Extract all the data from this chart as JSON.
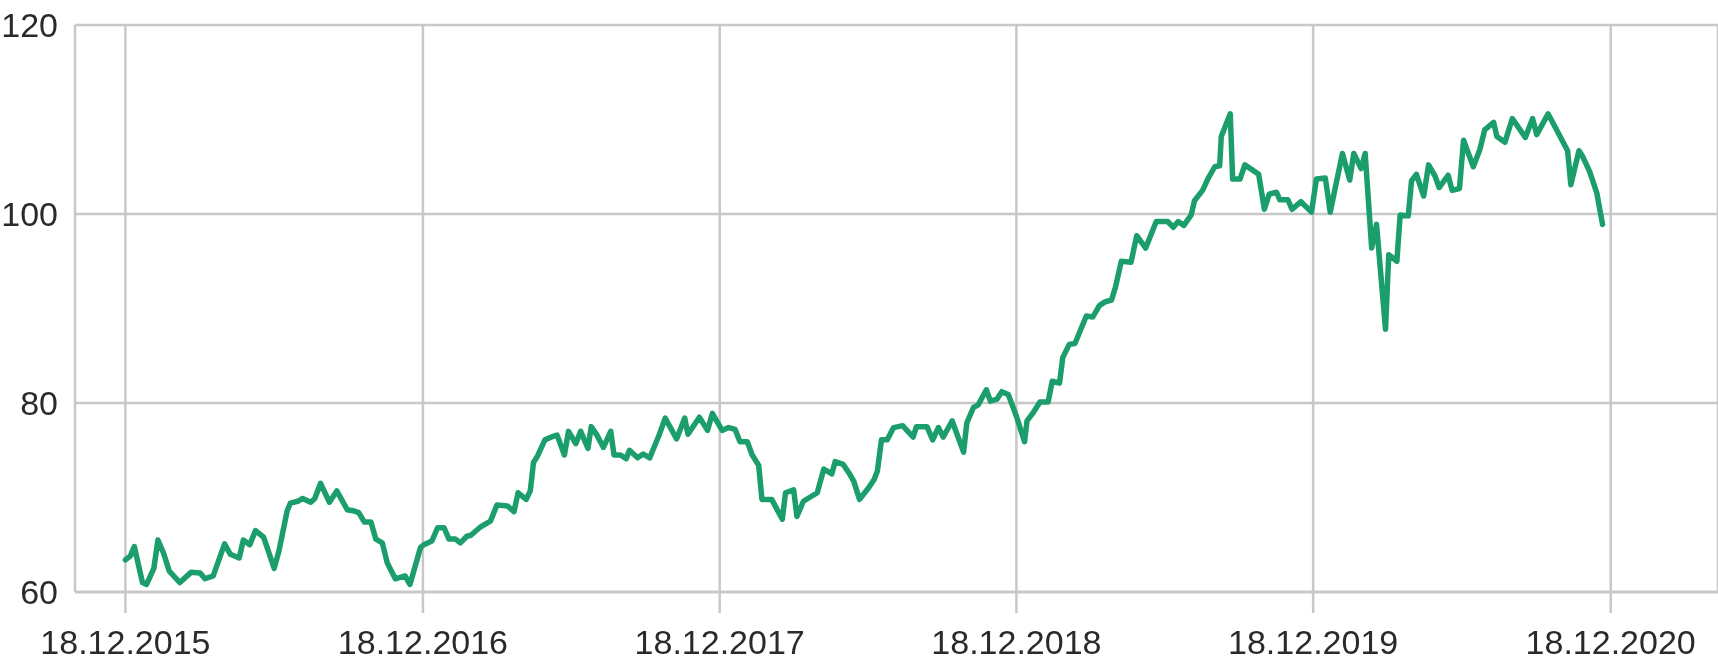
{
  "chart_data": {
    "type": "line",
    "x": [
      "2015-12-18",
      "2015-12-24",
      "2015-12-29",
      "2016-01-08",
      "2016-01-13",
      "2016-01-22",
      "2016-01-27",
      "2016-02-03",
      "2016-02-10",
      "2016-02-23",
      "2016-03-08",
      "2016-03-19",
      "2016-03-25",
      "2016-04-04",
      "2016-04-18",
      "2016-04-25",
      "2016-05-06",
      "2016-05-11",
      "2016-05-19",
      "2016-05-26",
      "2016-06-05",
      "2016-06-18",
      "2016-06-24",
      "2016-07-04",
      "2016-07-08",
      "2016-07-17",
      "2016-07-23",
      "2016-08-02",
      "2016-08-07",
      "2016-08-14",
      "2016-08-25",
      "2016-09-03",
      "2016-09-16",
      "2016-09-23",
      "2016-09-30",
      "2016-10-07",
      "2016-10-15",
      "2016-10-21",
      "2016-10-29",
      "2016-11-04",
      "2016-11-14",
      "2016-11-26",
      "2016-12-02",
      "2016-12-15",
      "2016-12-19",
      "2016-12-29",
      "2017-01-05",
      "2017-01-13",
      "2017-01-19",
      "2017-01-27",
      "2017-02-02",
      "2017-02-10",
      "2017-02-15",
      "2017-02-27",
      "2017-03-11",
      "2017-03-19",
      "2017-04-01",
      "2017-04-09",
      "2017-04-14",
      "2017-04-24",
      "2017-04-29",
      "2017-05-03",
      "2017-05-08",
      "2017-05-17",
      "2017-05-28",
      "2017-06-01",
      "2017-06-10",
      "2017-06-15",
      "2017-06-24",
      "2017-06-30",
      "2017-07-09",
      "2017-07-13",
      "2017-07-20",
      "2017-07-28",
      "2017-08-06",
      "2017-08-10",
      "2017-08-18",
      "2017-08-25",
      "2017-08-29",
      "2017-09-08",
      "2017-09-15",
      "2017-09-23",
      "2017-10-04",
      "2017-10-12",
      "2017-10-26",
      "2017-11-05",
      "2017-11-09",
      "2017-11-23",
      "2017-12-03",
      "2017-12-09",
      "2017-12-21",
      "2017-12-29",
      "2018-01-06",
      "2018-01-12",
      "2018-01-21",
      "2018-01-27",
      "2018-02-04",
      "2018-02-08",
      "2018-02-20",
      "2018-03-05",
      "2018-03-09",
      "2018-03-19",
      "2018-03-23",
      "2018-03-31",
      "2018-04-17",
      "2018-04-25",
      "2018-05-05",
      "2018-05-09",
      "2018-05-19",
      "2018-05-26",
      "2018-06-01",
      "2018-06-08",
      "2018-06-19",
      "2018-06-26",
      "2018-06-30",
      "2018-07-05",
      "2018-07-12",
      "2018-07-20",
      "2018-07-31",
      "2018-08-13",
      "2018-08-17",
      "2018-08-30",
      "2018-09-06",
      "2018-09-13",
      "2018-09-19",
      "2018-09-30",
      "2018-10-14",
      "2018-10-18",
      "2018-10-26",
      "2018-11-01",
      "2018-11-11",
      "2018-11-16",
      "2018-11-24",
      "2018-11-30",
      "2018-12-08",
      "2018-12-18",
      "2018-12-28",
      "2018-12-31",
      "2019-01-07",
      "2019-01-16",
      "2019-01-26",
      "2019-01-31",
      "2019-02-09",
      "2019-02-13",
      "2019-02-21",
      "2019-02-28",
      "2019-03-14",
      "2019-03-22",
      "2019-03-30",
      "2019-04-06",
      "2019-04-14",
      "2019-04-19",
      "2019-04-26",
      "2019-05-08",
      "2019-05-15",
      "2019-05-26",
      "2019-06-08",
      "2019-06-22",
      "2019-06-29",
      "2019-07-05",
      "2019-07-12",
      "2019-07-21",
      "2019-07-25",
      "2019-08-04",
      "2019-08-11",
      "2019-08-19",
      "2019-08-25",
      "2019-08-27",
      "2019-09-07",
      "2019-09-10",
      "2019-09-19",
      "2019-09-25",
      "2019-10-12",
      "2019-10-19",
      "2019-10-25",
      "2019-11-03",
      "2019-11-07",
      "2019-11-17",
      "2019-11-22",
      "2019-12-03",
      "2019-12-16",
      "2019-12-22",
      "2020-01-02",
      "2020-01-08",
      "2020-01-23",
      "2020-02-01",
      "2020-02-06",
      "2020-02-15",
      "2020-02-20",
      "2020-02-28",
      "2020-03-05",
      "2020-03-16",
      "2020-03-20",
      "2020-03-30",
      "2020-04-03",
      "2020-04-13",
      "2020-04-17",
      "2020-04-23",
      "2020-05-02",
      "2020-05-08",
      "2020-05-16",
      "2020-05-21",
      "2020-06-01",
      "2020-06-06",
      "2020-06-15",
      "2020-06-20",
      "2020-07-02",
      "2020-07-10",
      "2020-07-16",
      "2020-07-27",
      "2020-07-31",
      "2020-08-10",
      "2020-08-19",
      "2020-09-04",
      "2020-09-13",
      "2020-09-18",
      "2020-10-02",
      "2020-10-15",
      "2020-10-26",
      "2020-10-30",
      "2020-11-09",
      "2020-11-14",
      "2020-11-22",
      "2020-12-01",
      "2020-12-08"
    ],
    "values": [
      63.4,
      63.8,
      64.8,
      61.0,
      60.8,
      62.5,
      65.5,
      64.1,
      62.2,
      61.0,
      62.1,
      62.0,
      61.4,
      61.7,
      65.1,
      64.0,
      63.6,
      65.5,
      65.0,
      66.5,
      65.8,
      62.5,
      64.4,
      68.6,
      69.4,
      69.6,
      69.9,
      69.5,
      69.9,
      71.5,
      69.5,
      70.7,
      68.7,
      68.6,
      68.4,
      67.4,
      67.4,
      65.6,
      65.2,
      63.1,
      61.4,
      61.7,
      60.8,
      64.7,
      65.0,
      65.4,
      66.8,
      66.8,
      65.6,
      65.6,
      65.2,
      65.9,
      66.0,
      66.9,
      67.5,
      69.2,
      69.1,
      68.5,
      70.5,
      69.8,
      70.7,
      73.7,
      74.4,
      76.1,
      76.5,
      76.6,
      74.5,
      77.0,
      75.7,
      77.0,
      75.2,
      77.5,
      76.6,
      75.3,
      77.0,
      74.5,
      74.5,
      74.1,
      75.0,
      74.2,
      74.6,
      74.2,
      76.5,
      78.4,
      76.2,
      78.4,
      76.7,
      78.5,
      77.1,
      78.9,
      77.1,
      77.4,
      77.2,
      75.9,
      75.9,
      74.5,
      73.4,
      69.8,
      69.8,
      67.7,
      70.5,
      70.8,
      68.0,
      69.6,
      70.5,
      73.0,
      72.5,
      73.8,
      73.5,
      72.6,
      71.7,
      69.8,
      71.0,
      71.9,
      72.8,
      76.1,
      76.1,
      77.4,
      77.6,
      76.4,
      77.5,
      77.5,
      76.1,
      77.4,
      76.4,
      78.1,
      74.8,
      77.9,
      79.5,
      79.8,
      81.4,
      80.2,
      80.4,
      81.2,
      80.9,
      78.6,
      75.9,
      78.1,
      78.9,
      80.1,
      80.1,
      82.3,
      82.1,
      84.8,
      86.2,
      86.3,
      89.2,
      89.1,
      90.3,
      90.7,
      90.9,
      92.3,
      95.0,
      94.9,
      97.7,
      96.4,
      99.2,
      99.2,
      98.6,
      99.2,
      98.8,
      99.9,
      101.4,
      102.5,
      103.8,
      105.0,
      105.1,
      108.2,
      110.6,
      103.7,
      103.7,
      105.2,
      104.2,
      100.5,
      102.1,
      102.3,
      101.5,
      101.5,
      100.5,
      101.3,
      100.2,
      103.7,
      103.8,
      100.2,
      106.4,
      103.6,
      106.4,
      104.8,
      106.4,
      96.4,
      98.9,
      87.8,
      95.7,
      95.0,
      99.9,
      99.8,
      103.5,
      104.2,
      101.9,
      105.2,
      104.0,
      102.8,
      104.1,
      102.5,
      102.7,
      107.8,
      105.0,
      106.8,
      108.9,
      109.7,
      108.2,
      107.6,
      110.1,
      108.1,
      110.1,
      108.4,
      110.6,
      108.5,
      106.7,
      103.1,
      106.7,
      106.0,
      104.5,
      102.2,
      98.9
    ],
    "color": "#1b9e6c",
    "xlim": [
      "2015-10-17",
      "2021-04-29"
    ],
    "xticks": [
      {
        "value": "2015-12-18",
        "label": "18.12.2015"
      },
      {
        "value": "2016-12-18",
        "label": "18.12.2016"
      },
      {
        "value": "2017-12-18",
        "label": "18.12.2017"
      },
      {
        "value": "2018-12-18",
        "label": "18.12.2018"
      },
      {
        "value": "2019-12-18",
        "label": "18.12.2019"
      },
      {
        "value": "2020-12-18",
        "label": "18.12.2020"
      }
    ],
    "ylim": [
      60,
      120
    ],
    "yticks": [
      60,
      80,
      100,
      120
    ],
    "grid": true
  }
}
